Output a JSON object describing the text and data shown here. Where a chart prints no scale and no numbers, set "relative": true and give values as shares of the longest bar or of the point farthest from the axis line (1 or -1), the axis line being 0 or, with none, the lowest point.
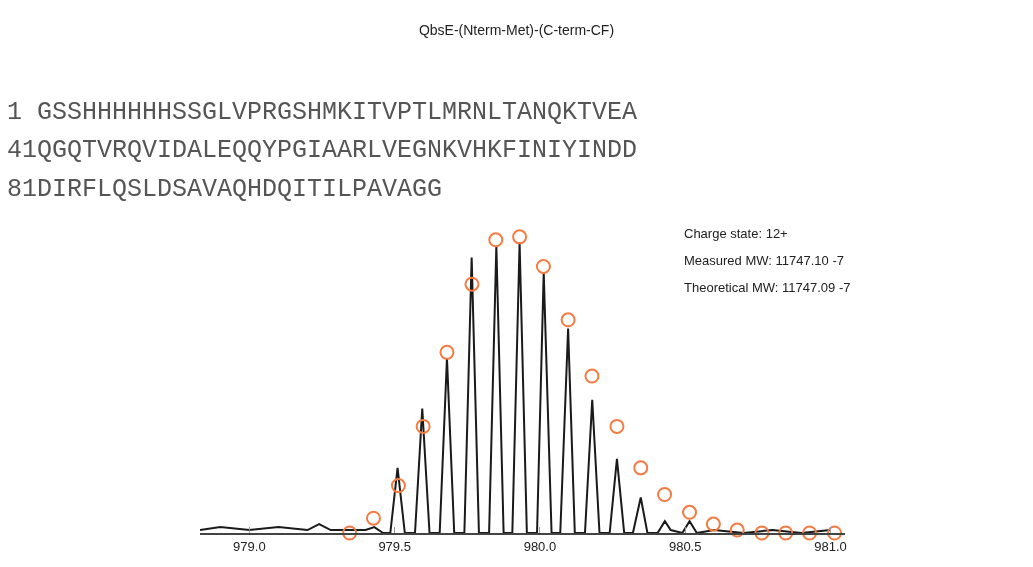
{
  "chart_data": {
    "type": "line",
    "title": "QbsE-(Nterm-Met)-(C-term-CF)",
    "relative": true,
    "xlim": [
      978.83,
      981.05
    ],
    "xticks": [
      {
        "value": 979.0,
        "label": "979.0"
      },
      {
        "value": 979.5,
        "label": "979.5"
      },
      {
        "value": 980.0,
        "label": "980.0"
      },
      {
        "value": 980.5,
        "label": "980.5"
      },
      {
        "value": 981.0,
        "label": "981.0"
      }
    ],
    "tick_labels": "x",
    "annotations": [
      "1 GSSHHHHHHSSGLVPRGSHMKITVPTLMRNLTANQKTVEA",
      "41QGQTVRQVIDALEQQYPGIAARLVEGNKVHKFINIYINDD",
      "81DIRFLQSLDSAVAQHDQITILPAVAGG",
      "Charge state: 12+",
      "Measured MW: 11747.10 -7",
      "Theoretical MW: 11747.09 -7"
    ],
    "series": [
      {
        "color": "#1a1a1a",
        "marker": "none",
        "line_style": "solid",
        "x": [
          978.83,
          978.9,
          979.0,
          979.1,
          979.2,
          979.24,
          979.28,
          979.35,
          979.4,
          979.43,
          979.46,
          979.485,
          979.51,
          979.535,
          979.57,
          979.595,
          979.62,
          979.655,
          979.68,
          979.705,
          979.74,
          979.765,
          979.79,
          979.825,
          979.85,
          979.875,
          979.905,
          979.93,
          979.955,
          979.99,
          980.013,
          980.04,
          980.07,
          980.097,
          980.12,
          980.155,
          980.18,
          980.205,
          980.24,
          980.265,
          980.29,
          980.32,
          980.347,
          980.37,
          980.405,
          980.43,
          980.45,
          980.49,
          980.515,
          980.54,
          980.6,
          980.7,
          980.8,
          980.9,
          981.0
        ],
        "values": [
          0.01,
          0.02,
          0.01,
          0.02,
          0.01,
          0.03,
          0.01,
          0.01,
          0.01,
          0.02,
          0.0,
          0.0,
          0.22,
          0.0,
          0.0,
          0.42,
          0.0,
          0.0,
          0.59,
          0.0,
          0.0,
          0.93,
          0.0,
          0.0,
          0.97,
          0.0,
          0.0,
          0.98,
          0.0,
          0.0,
          0.88,
          0.0,
          0.0,
          0.69,
          0.0,
          0.0,
          0.45,
          0.0,
          0.0,
          0.25,
          0.0,
          0.0,
          0.12,
          0.0,
          0.0,
          0.04,
          0.01,
          0.0,
          0.04,
          0.0,
          0.01,
          0.0,
          0.01,
          0.0,
          0.01
        ]
      },
      {
        "type": "scatter",
        "color": "#f47b42",
        "marker": "circle",
        "x": [
          979.345,
          979.427,
          979.513,
          979.598,
          979.68,
          979.766,
          979.848,
          979.93,
          980.012,
          980.097,
          980.179,
          980.265,
          980.347,
          980.429,
          980.515,
          980.597,
          980.679,
          980.764,
          980.846,
          980.928,
          981.014
        ],
        "values": [
          0.0,
          0.05,
          0.16,
          0.36,
          0.61,
          0.84,
          0.99,
          1.0,
          0.9,
          0.72,
          0.53,
          0.36,
          0.22,
          0.13,
          0.07,
          0.03,
          0.01,
          0.0,
          0.0,
          0.0,
          0.0
        ]
      }
    ]
  }
}
